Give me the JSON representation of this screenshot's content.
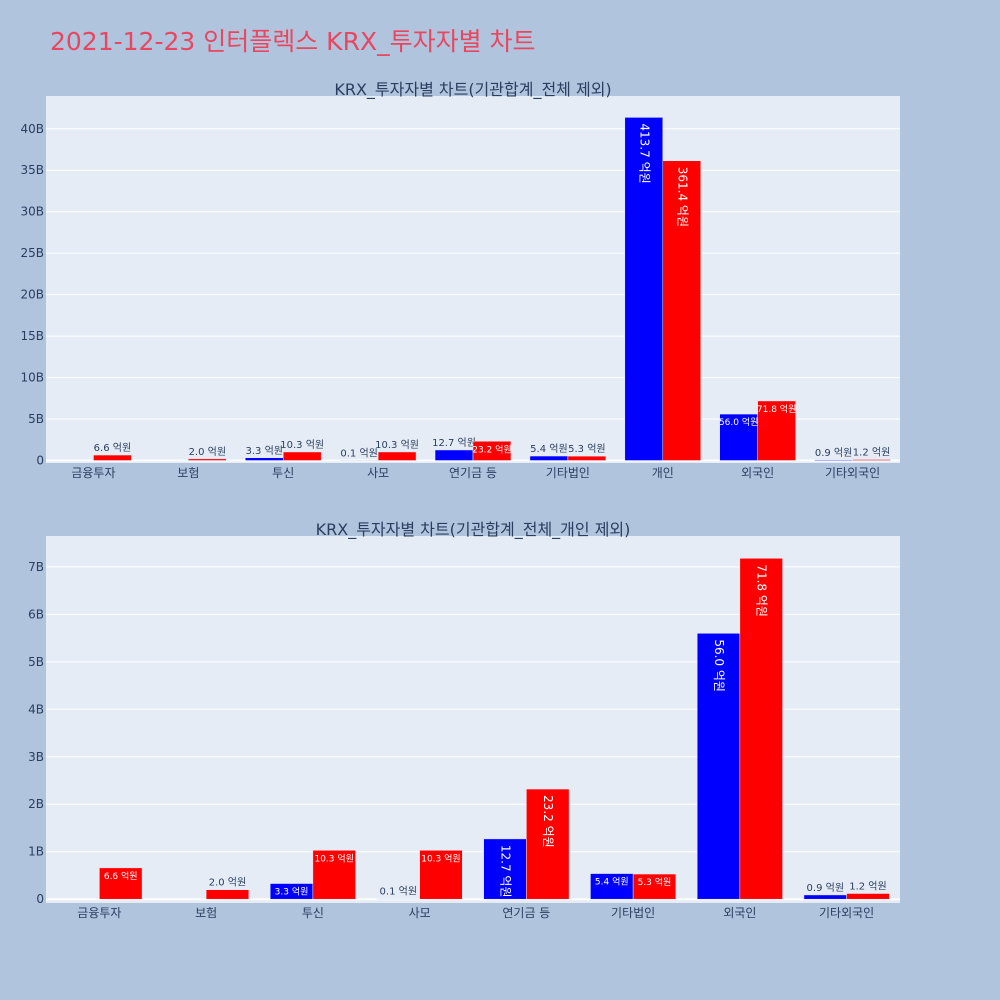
{
  "page": {
    "title": "2021-12-23 인터플렉스 KRX_투자자별 차트"
  },
  "colors": {
    "buy": "#0000ff",
    "sell": "#ff0000",
    "plot_bg": "#e5ecf6",
    "page_bg": "#b0c4de"
  },
  "chart_data": [
    {
      "type": "bar",
      "title": "KRX_투자자별 차트(기관합계_전체 제외)",
      "categories": [
        "금융투자",
        "보험",
        "투신",
        "사모",
        "연기금 등",
        "기타법인",
        "개인",
        "외국인",
        "기타외국인"
      ],
      "series": [
        {
          "values": [
            0,
            0,
            330000000,
            10000000,
            1270000000,
            540000000,
            41370000000,
            5600000000,
            90000000
          ],
          "labels": [
            "",
            "",
            "3.3 억원",
            "0.1 억원",
            "12.7 억원",
            "5.4 억원",
            "413.7 억원",
            "56.0 억원",
            "0.9 억원"
          ]
        },
        {
          "values": [
            660000000,
            200000000,
            1030000000,
            1030000000,
            2320000000,
            530000000,
            36140000000,
            7180000000,
            120000000
          ],
          "labels": [
            "6.6 억원",
            "2.0 억원",
            "10.3 억원",
            "10.3 억원",
            "23.2 억원",
            "5.3 억원",
            "361.4 억원",
            "71.8 억원",
            "1.2 억원"
          ]
        }
      ],
      "ylim": [
        -300000000,
        43950000000
      ],
      "yticks": [
        0,
        5000000000,
        10000000000,
        15000000000,
        20000000000,
        25000000000,
        30000000000,
        35000000000,
        40000000000
      ],
      "yticklabels": [
        "0",
        "5B",
        "10B",
        "15B",
        "20B",
        "25B",
        "30B",
        "35B",
        "40B"
      ],
      "grid": true
    },
    {
      "type": "bar",
      "title": "KRX_투자자별 차트(기관합계_전체_개인 제외)",
      "categories": [
        "금융투자",
        "보험",
        "투신",
        "사모",
        "연기금 등",
        "기타법인",
        "외국인",
        "기타외국인"
      ],
      "series": [
        {
          "values": [
            0,
            0,
            330000000,
            10000000,
            1270000000,
            540000000,
            5600000000,
            90000000
          ],
          "labels": [
            "",
            "",
            "3.3 억원",
            "0.1 억원",
            "12.7 억원",
            "5.4 억원",
            "56.0 억원",
            "0.9 억원"
          ]
        },
        {
          "values": [
            660000000,
            200000000,
            1030000000,
            1030000000,
            2320000000,
            530000000,
            7180000000,
            120000000
          ],
          "labels": [
            "6.6 억원",
            "2.0 억원",
            "10.3 억원",
            "10.3 억원",
            "23.2 억원",
            "5.3 억원",
            "71.8 억원",
            "1.2 억원"
          ]
        }
      ],
      "ylim": [
        -80000000,
        7650000000
      ],
      "yticks": [
        0,
        1000000000,
        2000000000,
        3000000000,
        4000000000,
        5000000000,
        6000000000,
        7000000000
      ],
      "yticklabels": [
        "0",
        "1B",
        "2B",
        "3B",
        "4B",
        "5B",
        "6B",
        "7B"
      ],
      "grid": true
    }
  ]
}
